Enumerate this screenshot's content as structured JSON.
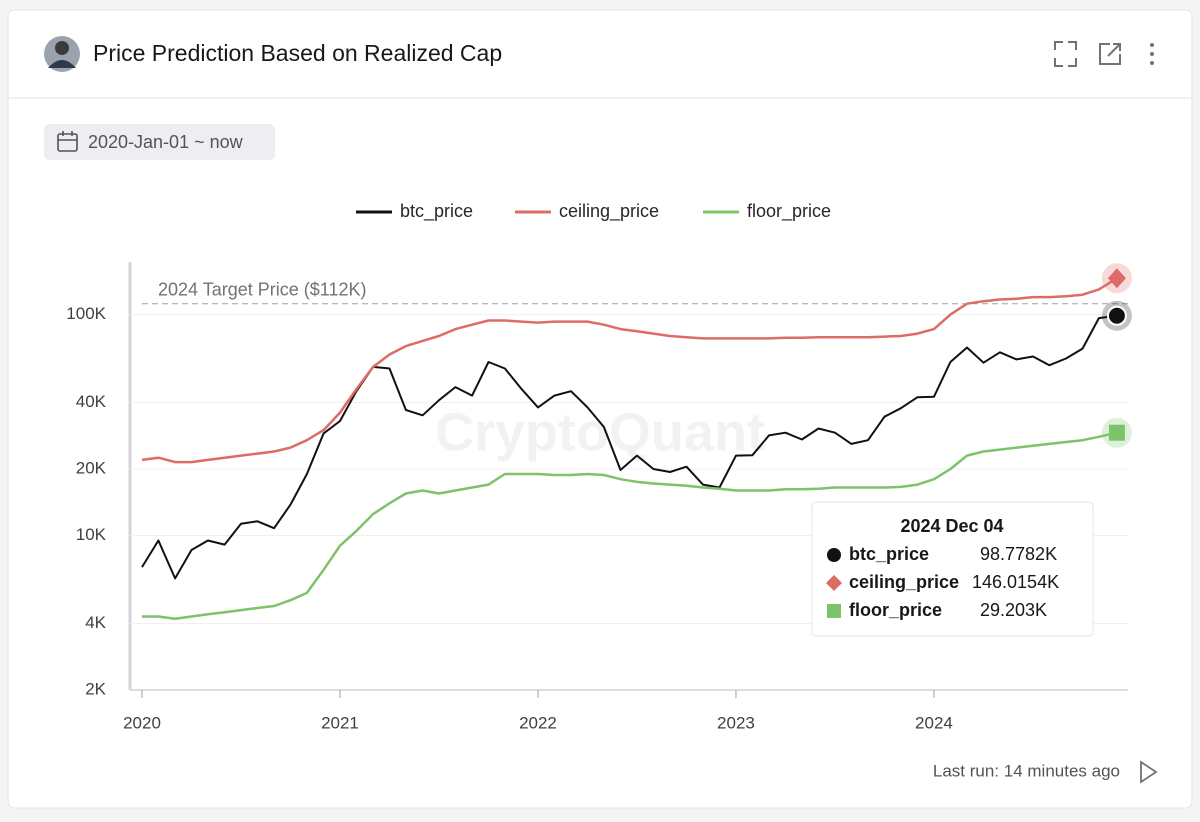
{
  "header": {
    "title": "Price Prediction Based on Realized Cap"
  },
  "date_range": "2020-Jan-01 ~ now",
  "footer": "Last run: 14 minutes ago",
  "chart_data": {
    "type": "line",
    "log_scale": true,
    "grid": true,
    "watermark": "CryptoQuant",
    "annotation": {
      "text": "2024 Target Price ($112K)",
      "value": 112000
    },
    "x": [
      2020,
      2020.083,
      2020.167,
      2020.25,
      2020.333,
      2020.417,
      2020.5,
      2020.583,
      2020.667,
      2020.75,
      2020.833,
      2020.917,
      2021,
      2021.083,
      2021.167,
      2021.25,
      2021.333,
      2021.417,
      2021.5,
      2021.583,
      2021.667,
      2021.75,
      2021.833,
      2021.917,
      2022,
      2022.083,
      2022.167,
      2022.25,
      2022.333,
      2022.417,
      2022.5,
      2022.583,
      2022.667,
      2022.75,
      2022.833,
      2022.917,
      2023,
      2023.083,
      2023.167,
      2023.25,
      2023.333,
      2023.417,
      2023.5,
      2023.583,
      2023.667,
      2023.75,
      2023.833,
      2023.917,
      2024,
      2024.083,
      2024.167,
      2024.25,
      2024.333,
      2024.417,
      2024.5,
      2024.583,
      2024.667,
      2024.75,
      2024.833,
      2024.924
    ],
    "xlim": [
      2020,
      2024.98
    ],
    "xticks": [
      2020,
      2021,
      2022,
      2023,
      2024
    ],
    "ylim": [
      2000,
      173000
    ],
    "yticks": [
      {
        "value": 2000,
        "label": "2K"
      },
      {
        "value": 4000,
        "label": "4K"
      },
      {
        "value": 10000,
        "label": "10K"
      },
      {
        "value": 20000,
        "label": "20K"
      },
      {
        "value": 40000,
        "label": "40K"
      },
      {
        "value": 100000,
        "label": "100K"
      }
    ],
    "series": [
      {
        "name": "btc_price",
        "color": "#111111",
        "values": [
          7200,
          9500,
          6400,
          8600,
          9500,
          9100,
          11300,
          11600,
          10800,
          13800,
          19000,
          29000,
          33000,
          45000,
          58000,
          57000,
          37000,
          35000,
          41000,
          47000,
          43000,
          61000,
          57000,
          46000,
          38000,
          43000,
          45000,
          38000,
          31000,
          19800,
          23000,
          20000,
          19400,
          20500,
          17000,
          16500,
          23000,
          23100,
          28400,
          29200,
          27200,
          30500,
          29200,
          26000,
          27000,
          34500,
          37700,
          42300,
          42500,
          61000,
          71000,
          60600,
          67500,
          62700,
          64600,
          59000,
          63300,
          70200,
          96400,
          98778.2
        ]
      },
      {
        "name": "ceiling_price",
        "color": "#dd6b66",
        "values": [
          22000,
          22500,
          21500,
          21500,
          22000,
          22500,
          23000,
          23500,
          24000,
          25000,
          27000,
          30000,
          36000,
          46000,
          58000,
          66000,
          72000,
          76000,
          80000,
          86000,
          90000,
          94000,
          94000,
          93000,
          92000,
          93000,
          93000,
          93000,
          90000,
          86000,
          84000,
          82000,
          80000,
          79000,
          78000,
          78000,
          78000,
          78000,
          78000,
          78500,
          78500,
          79000,
          79000,
          79000,
          79000,
          79500,
          80000,
          82000,
          86000,
          100000,
          112000,
          115000,
          117000,
          118000,
          120000,
          120000,
          121000,
          123000,
          130000,
          146015.4
        ]
      },
      {
        "name": "floor_price",
        "color": "#7cc36b",
        "values": [
          4300,
          4300,
          4200,
          4300,
          4400,
          4500,
          4600,
          4700,
          4800,
          5100,
          5500,
          7000,
          9000,
          10500,
          12500,
          14000,
          15500,
          16000,
          15500,
          16000,
          16500,
          17000,
          19000,
          19000,
          19000,
          18800,
          18800,
          19000,
          18800,
          18000,
          17500,
          17200,
          17000,
          16800,
          16500,
          16300,
          16000,
          16000,
          16000,
          16200,
          16200,
          16300,
          16500,
          16500,
          16500,
          16500,
          16600,
          17000,
          18000,
          20000,
          23000,
          24000,
          24500,
          25000,
          25500,
          26000,
          26500,
          27000,
          28000,
          29203
        ]
      }
    ],
    "tooltip": {
      "title": "2024 Dec 04",
      "value_labels": [
        "98.7782K",
        "146.0154K",
        "29.203K"
      ]
    }
  }
}
